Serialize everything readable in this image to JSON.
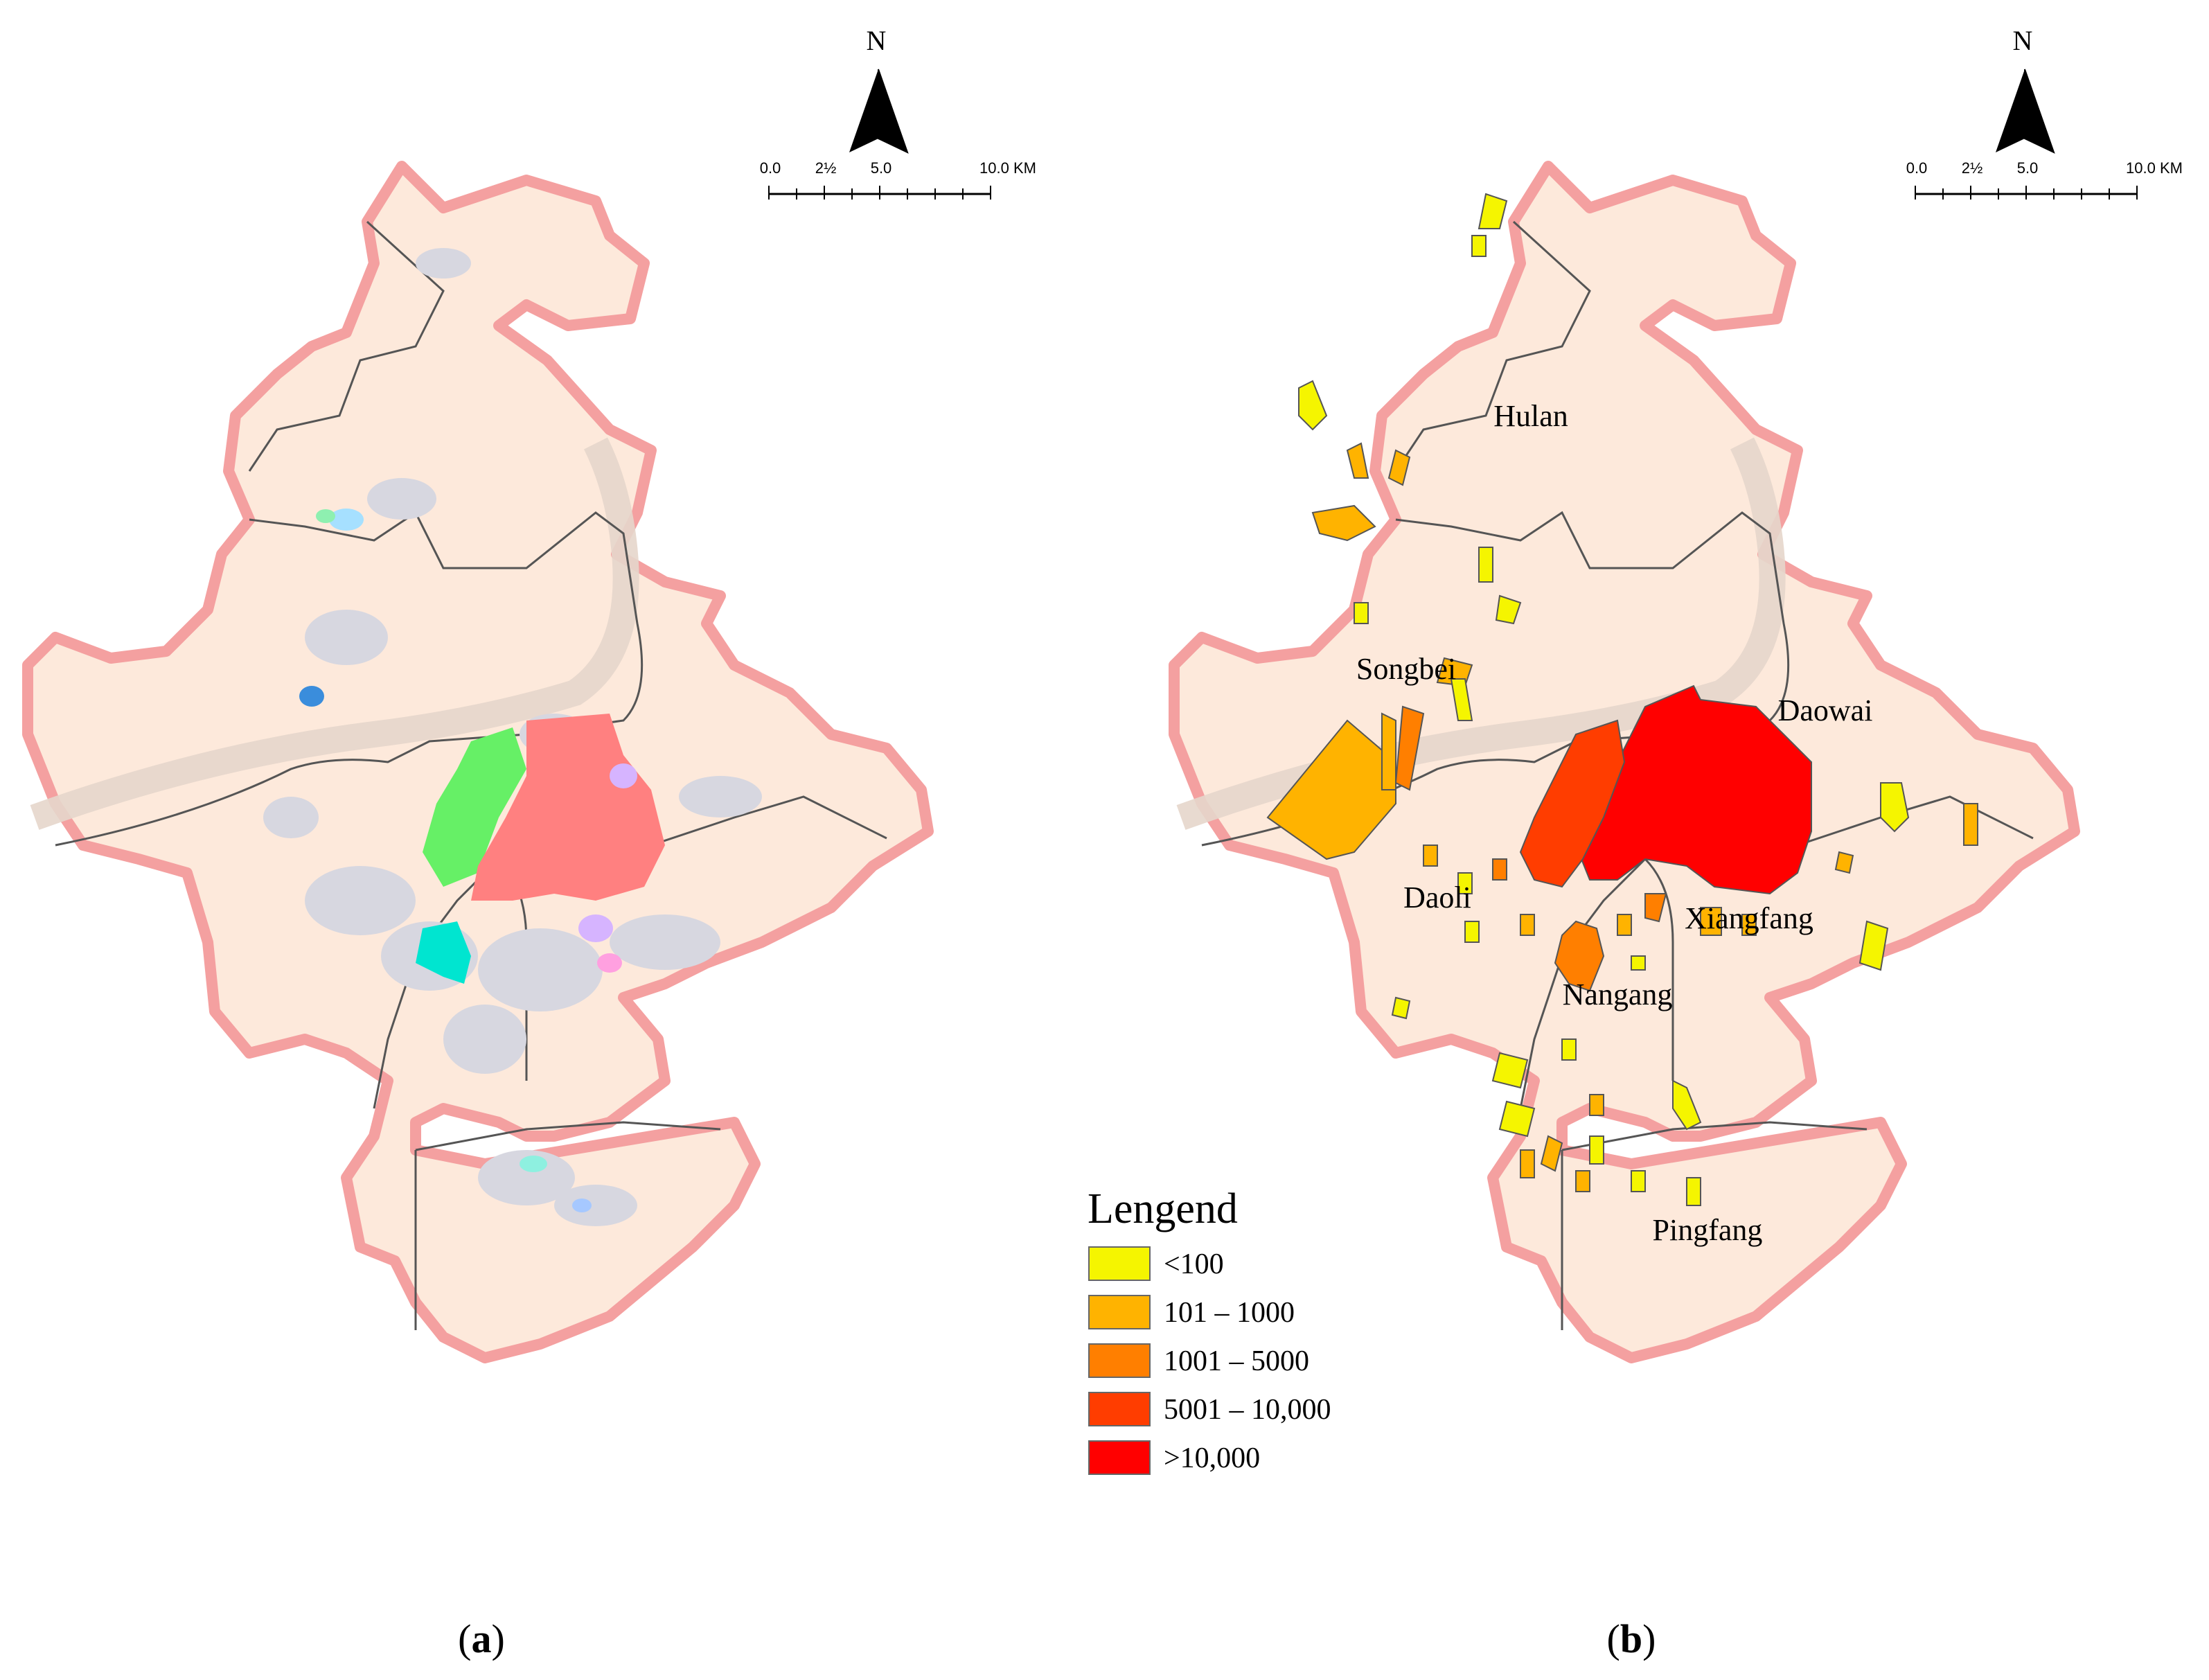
{
  "panels": [
    {
      "id": "a",
      "caption_open": "(",
      "caption_letter": "a",
      "caption_close": ")",
      "north": "N",
      "scale": {
        "labels": [
          "0.0",
          "2½",
          "5.0",
          "10.0 KM"
        ]
      }
    },
    {
      "id": "b",
      "caption_open": "(",
      "caption_letter": "b",
      "caption_close": ")",
      "north": "N",
      "scale": {
        "labels": [
          "0.0",
          "2½",
          "5.0",
          "10.0 KM"
        ]
      },
      "districts": [
        "Hulan",
        "Songbei",
        "Daowai",
        "Daoli",
        "Xiangfang",
        "Nangang",
        "Pingfang"
      ]
    }
  ],
  "legend": {
    "title": "Lengend",
    "items": [
      {
        "label": "<100",
        "color": "#f5f500"
      },
      {
        "label": "101 – 1000",
        "color": "#ffb300"
      },
      {
        "label": "1001 – 5000",
        "color": "#ff7f00"
      },
      {
        "label": "5001 – 10,000",
        "color": "#ff3d00"
      },
      {
        "label": ">10,000",
        "color": "#ff0000"
      }
    ]
  },
  "colors": {
    "land": "#fde9db",
    "boundary": "#f4a0a0",
    "district_line": "#555555",
    "river": "#e6d6cb",
    "cluster_gray": "#d7d7e0"
  }
}
